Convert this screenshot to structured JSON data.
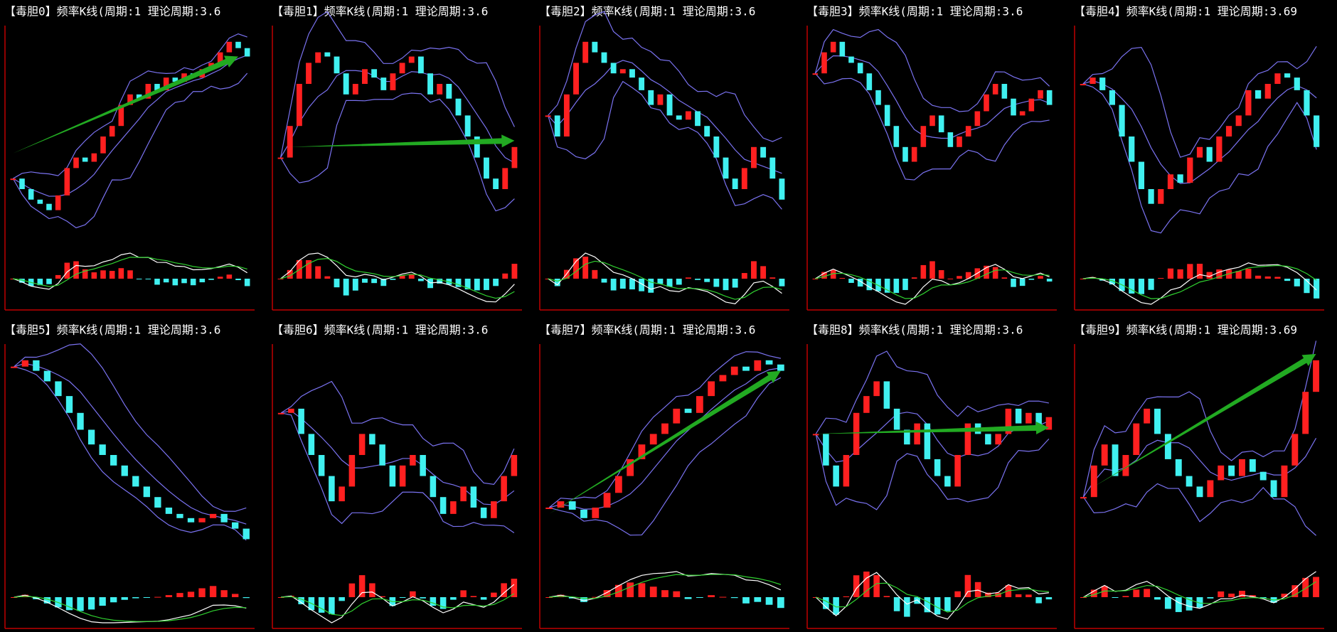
{
  "chart_data": [
    {
      "type": "candlestick",
      "title": "【毒胆0】频率K线(周期:1 理论周期:3.6",
      "values": [
        30,
        25,
        20,
        18,
        15,
        22,
        35,
        40,
        38,
        42,
        50,
        55,
        65,
        70,
        68,
        75,
        72,
        78,
        76,
        80,
        78,
        82,
        85,
        90,
        95,
        92,
        88
      ],
      "ylim": [
        0,
        100
      ],
      "arrow": {
        "x": [
          0,
          25
        ],
        "y": [
          42,
          88
        ]
      }
    },
    {
      "type": "candlestick",
      "title": "【毒胆1】频率K线(周期:1 理论周期:3.6",
      "values": [
        40,
        55,
        75,
        85,
        90,
        88,
        80,
        70,
        75,
        82,
        78,
        72,
        80,
        85,
        88,
        80,
        70,
        75,
        68,
        60,
        50,
        40,
        30,
        25,
        35,
        45
      ],
      "ylim": [
        0,
        100
      ],
      "arrow": {
        "x": [
          1,
          25
        ],
        "y": [
          45,
          48
        ]
      }
    },
    {
      "type": "candlestick",
      "title": "【毒胆2】频率K线(周期:1 理论周期:3.6",
      "values": [
        60,
        50,
        70,
        85,
        95,
        90,
        85,
        80,
        82,
        78,
        72,
        65,
        70,
        60,
        58,
        62,
        55,
        50,
        40,
        30,
        25,
        35,
        45,
        40,
        30,
        20
      ],
      "ylim": [
        0,
        100
      ]
    },
    {
      "type": "candlestick",
      "title": "【毒胆3】频率K线(周期:1 理论周期:3.6",
      "values": [
        80,
        90,
        95,
        88,
        85,
        80,
        72,
        65,
        55,
        45,
        38,
        45,
        55,
        60,
        52,
        45,
        50,
        55,
        62,
        70,
        75,
        68,
        60,
        62,
        68,
        72,
        65
      ],
      "ylim": [
        0,
        100
      ]
    },
    {
      "type": "candlestick",
      "title": "【毒胆4】频率K线(周期:1 理论周期:3.69",
      "values": [
        75,
        78,
        72,
        65,
        50,
        38,
        25,
        18,
        25,
        32,
        28,
        40,
        45,
        38,
        50,
        55,
        60,
        72,
        68,
        75,
        80,
        78,
        72,
        60,
        45
      ],
      "ylim": [
        0,
        100
      ]
    },
    {
      "type": "candlestick",
      "title": "【毒胆5】频率K线(周期:1 理论周期:3.6",
      "values": [
        92,
        95,
        90,
        85,
        78,
        70,
        62,
        55,
        50,
        45,
        40,
        35,
        30,
        25,
        22,
        20,
        18,
        20,
        22,
        18,
        15,
        10
      ],
      "ylim": [
        0,
        100
      ]
    },
    {
      "type": "candlestick",
      "title": "【毒胆6】频率K线(周期:1 理论周期:3.6",
      "values": [
        70,
        72,
        60,
        50,
        40,
        28,
        35,
        50,
        60,
        55,
        45,
        35,
        45,
        50,
        40,
        30,
        22,
        28,
        35,
        25,
        20,
        28,
        40,
        50
      ],
      "ylim": [
        0,
        100
      ]
    },
    {
      "type": "candlestick",
      "title": "【毒胆7】频率K线(周期:1 理论周期:3.6",
      "values": [
        25,
        28,
        24,
        20,
        25,
        32,
        40,
        48,
        55,
        60,
        65,
        72,
        70,
        78,
        85,
        88,
        92,
        90,
        95,
        93,
        90
      ],
      "ylim": [
        0,
        100
      ],
      "arrow": {
        "x": [
          0,
          20
        ],
        "y": [
          22,
          90
        ]
      }
    },
    {
      "type": "candlestick",
      "title": "【毒胆8】频率K线(周期:1 理论周期:3.6",
      "values": [
        60,
        45,
        35,
        50,
        70,
        78,
        85,
        72,
        62,
        55,
        65,
        48,
        40,
        35,
        50,
        65,
        60,
        55,
        60,
        72,
        65,
        70,
        62,
        68
      ],
      "ylim": [
        0,
        100
      ],
      "arrow": {
        "x": [
          0,
          23
        ],
        "y": [
          60,
          63
        ]
      }
    },
    {
      "type": "candlestick",
      "title": "【毒胆9】频率K线(周期:1 理论周期:3.69",
      "values": [
        30,
        45,
        55,
        40,
        50,
        65,
        72,
        60,
        48,
        40,
        35,
        30,
        38,
        45,
        40,
        48,
        42,
        38,
        30,
        45,
        60,
        80,
        95
      ],
      "ylim": [
        0,
        100
      ],
      "arrow": {
        "x": [
          1,
          22
        ],
        "y": [
          35,
          98
        ]
      }
    }
  ]
}
